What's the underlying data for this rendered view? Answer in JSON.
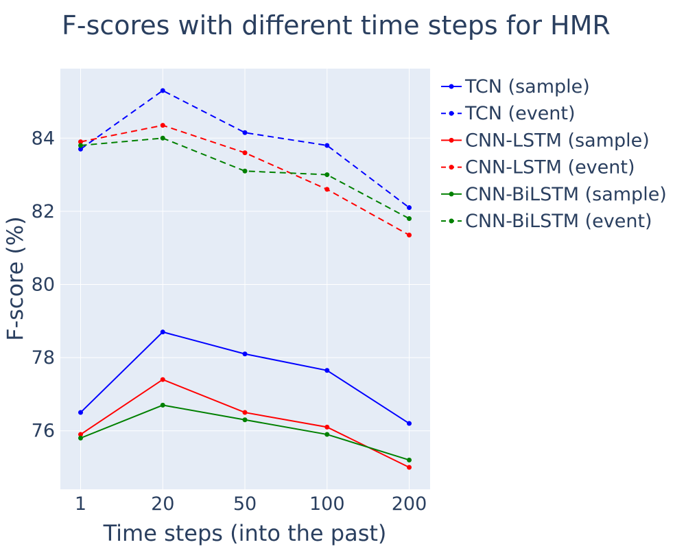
{
  "chart_data": {
    "type": "line",
    "title": "F-scores with different time steps for HMR",
    "xlabel": "Time steps (into the past)",
    "ylabel": "F-score (%)",
    "categories": [
      "1",
      "20",
      "50",
      "100",
      "200"
    ],
    "ylim": [
      74.4,
      85.9
    ],
    "yticks": [
      76,
      78,
      80,
      82,
      84
    ],
    "grid": true,
    "legend_position": "right",
    "plot_background": "#e5ecf6",
    "series": [
      {
        "name": "TCN (sample)",
        "color": "#0000ff",
        "dash": "solid",
        "values": [
          76.5,
          78.7,
          78.1,
          77.65,
          76.2
        ]
      },
      {
        "name": "TCN (event)",
        "color": "#0000ff",
        "dash": "dash",
        "values": [
          83.7,
          85.3,
          84.15,
          83.8,
          82.1
        ]
      },
      {
        "name": "CNN-LSTM (sample)",
        "color": "#ff0000",
        "dash": "solid",
        "values": [
          75.9,
          77.4,
          76.5,
          76.1,
          75.0
        ]
      },
      {
        "name": "CNN-LSTM (event)",
        "color": "#ff0000",
        "dash": "dash",
        "values": [
          83.9,
          84.35,
          83.6,
          82.6,
          81.35
        ]
      },
      {
        "name": "CNN-BiLSTM (sample)",
        "color": "#008000",
        "dash": "solid",
        "values": [
          75.8,
          76.7,
          76.3,
          75.9,
          75.2
        ]
      },
      {
        "name": "CNN-BiLSTM (event)",
        "color": "#008000",
        "dash": "dash",
        "values": [
          83.8,
          84.0,
          83.1,
          83.0,
          81.8
        ]
      }
    ]
  }
}
